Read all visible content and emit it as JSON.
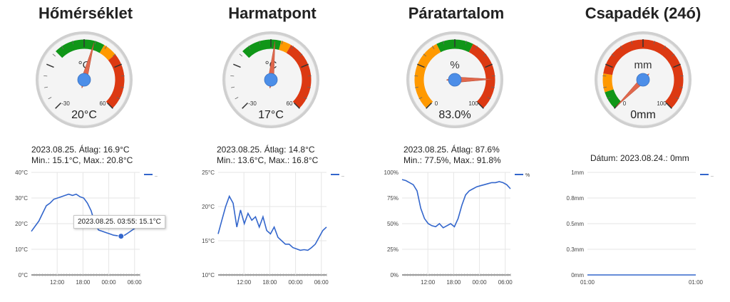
{
  "panels": [
    {
      "title": "Hőmérséklet",
      "gauge": {
        "unit": "°C",
        "min_label": "-30",
        "max_label": "60",
        "min": -30,
        "max": 60,
        "value": 20,
        "readout": "20°C",
        "bands": [
          {
            "from": 0,
            "to": 25,
            "color": "#109618"
          },
          {
            "from": 25,
            "to": 32,
            "color": "#ff9900"
          },
          {
            "from": 32,
            "to": 60,
            "color": "#dc3912"
          }
        ]
      },
      "summary_line1": "2023.08.25. Átlag: 16.9°C",
      "summary_line2": "Min.: 15.1°C, Max.: 20.8°C",
      "legend": "..",
      "tooltip": "2023.08.25. 03:55: 15.1°C"
    },
    {
      "title": "Harmatpont",
      "gauge": {
        "unit": "°C",
        "min_label": "-30",
        "max_label": "60",
        "min": -30,
        "max": 60,
        "value": 17,
        "readout": "17°C",
        "bands": [
          {
            "from": 0,
            "to": 20,
            "color": "#109618"
          },
          {
            "from": 20,
            "to": 25,
            "color": "#ff9900"
          },
          {
            "from": 25,
            "to": 60,
            "color": "#dc3912"
          }
        ]
      },
      "summary_line1": "2023.08.25. Átlag: 14.8°C",
      "summary_line2": "Min.: 13.6°C, Max.: 16.8°C",
      "legend": ".."
    },
    {
      "title": "Páratartalom",
      "gauge": {
        "unit": "%",
        "min_label": "0",
        "max_label": "100",
        "min": 0,
        "max": 100,
        "value": 83,
        "readout": "83.0%",
        "bands": [
          {
            "from": 0,
            "to": 40,
            "color": "#ff9900"
          },
          {
            "from": 40,
            "to": 60,
            "color": "#109618"
          },
          {
            "from": 60,
            "to": 100,
            "color": "#dc3912"
          }
        ]
      },
      "summary_line1": "2023.08.25. Átlag: 87.6%",
      "summary_line2": "Min.: 77.5%, Max.: 91.8%",
      "legend": "%"
    },
    {
      "title": "Csapadék (24ó)",
      "gauge": {
        "unit": "mm",
        "min_label": "0",
        "max_label": "100",
        "min": 0,
        "max": 100,
        "value": 0,
        "readout": "0mm",
        "bands": [
          {
            "from": 0,
            "to": 10,
            "color": "#109618"
          },
          {
            "from": 10,
            "to": 20,
            "color": "#ff9900"
          },
          {
            "from": 20,
            "to": 100,
            "color": "#dc3912"
          }
        ]
      },
      "summary_line1": "Dátum: 2023.08.24.: 0mm",
      "legend": ".."
    }
  ],
  "colors": {
    "series": "#3366cc",
    "grid": "#e6e6e6",
    "needle": "#e0684d",
    "hub": "#4c8ee8"
  },
  "chart_data": [
    {
      "type": "line",
      "x_ticks": [
        "12:00",
        "18:00",
        "00:00",
        "06:00"
      ],
      "y_ticks": [
        "0°C",
        "10°C",
        "20°C",
        "30°C",
        "40°C"
      ],
      "ylim": [
        0,
        40
      ],
      "series": [
        {
          "name": "..",
          "values": [
            17,
            19,
            21,
            24,
            27,
            28,
            29.5,
            30,
            30.5,
            31,
            31.5,
            31,
            31.5,
            30.5,
            30,
            28,
            25,
            20,
            17.5,
            17,
            16.5,
            16,
            15.5,
            15.3,
            15.1,
            15.5,
            16.5,
            17.5,
            18.5,
            19
          ]
        }
      ]
    },
    {
      "type": "line",
      "x_ticks": [
        "12:00",
        "18:00",
        "00:00",
        "06:00"
      ],
      "y_ticks": [
        "10°C",
        "15°C",
        "20°C",
        "25°C"
      ],
      "ylim": [
        10,
        25
      ],
      "series": [
        {
          "name": "..",
          "values": [
            16,
            18,
            20,
            21.5,
            20.5,
            17,
            19.5,
            17.5,
            19,
            18,
            18.5,
            17,
            18.5,
            16.5,
            16,
            17,
            15.5,
            15,
            14.5,
            14.5,
            14,
            13.8,
            13.6,
            13.7,
            13.6,
            14,
            14.5,
            15.5,
            16.5,
            17
          ]
        }
      ]
    },
    {
      "type": "line",
      "x_ticks": [
        "12:00",
        "18:00",
        "00:00",
        "06:00"
      ],
      "y_ticks": [
        "0%",
        "25%",
        "50%",
        "75%",
        "100%"
      ],
      "ylim": [
        0,
        100
      ],
      "series": [
        {
          "name": "%",
          "values": [
            93,
            92,
            90,
            88,
            82,
            65,
            55,
            50,
            48,
            47,
            50,
            46,
            48,
            50,
            47,
            55,
            68,
            78,
            82,
            84,
            86,
            87,
            88,
            89,
            90,
            90,
            91,
            90,
            88,
            84
          ]
        }
      ]
    },
    {
      "type": "line",
      "x_ticks": [
        "01:00",
        "01:00"
      ],
      "y_ticks": [
        "0mm",
        "0.3mm",
        "0.5mm",
        "0.8mm",
        "1mm"
      ],
      "ylim": [
        0,
        1
      ],
      "series": [
        {
          "name": "..",
          "values": [
            0,
            0
          ]
        }
      ]
    }
  ]
}
